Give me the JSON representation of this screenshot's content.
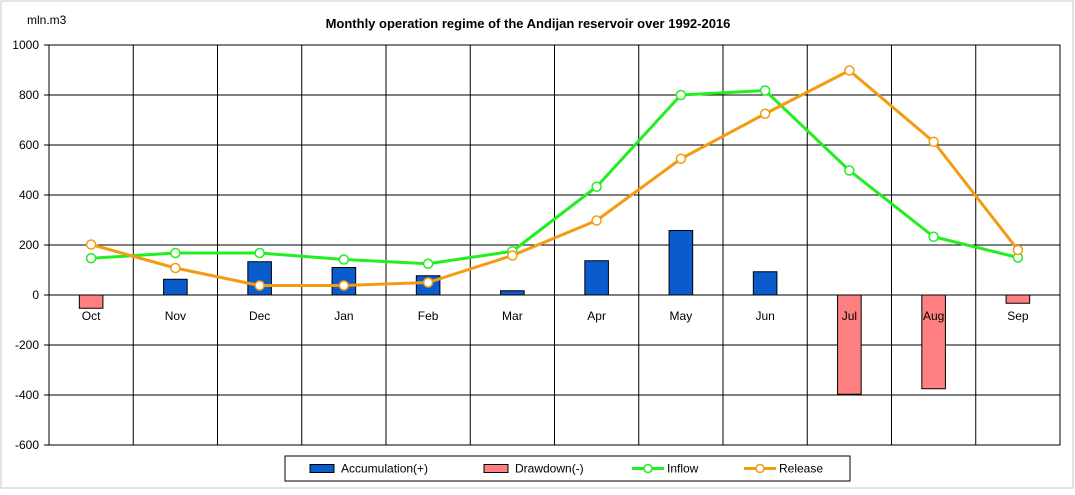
{
  "chart_data": {
    "type": "bar",
    "title": "Monthly operation regime of the Andijan reservoir over 1992-2016",
    "ylabel": "mln.m3",
    "xlabel": "",
    "ylim": [
      -600,
      1000
    ],
    "yticks": [
      1000,
      800,
      600,
      400,
      200,
      0,
      -200,
      -400,
      -600
    ],
    "ytick_labels": [
      "1000",
      "800",
      "600",
      "400",
      "200",
      "0",
      "-200",
      "-400",
      "-600"
    ],
    "grid": true,
    "legend_position": "bottom",
    "categories": [
      "Oct",
      "Nov",
      "Dec",
      "Jan",
      "Feb",
      "Mar",
      "Apr",
      "May",
      "Jun",
      "Jul",
      "Aug",
      "Sep"
    ],
    "series": [
      {
        "name": "Accumulation(+)",
        "kind": "bar",
        "color": "#0a5ccc",
        "values": [
          0,
          63,
          133,
          110,
          77,
          17,
          137,
          258,
          93,
          0,
          0,
          0
        ]
      },
      {
        "name": "Drawdown(-)",
        "kind": "bar",
        "color": "#ff8080",
        "values": [
          -53,
          0,
          0,
          0,
          0,
          0,
          0,
          0,
          0,
          -397,
          -375,
          -33
        ]
      },
      {
        "name": "Inflow",
        "kind": "line",
        "color": "#22ee22",
        "values": [
          147,
          168,
          168,
          142,
          125,
          175,
          433,
          800,
          818,
          498,
          233,
          150
        ]
      },
      {
        "name": "Release",
        "kind": "line",
        "color": "#f39c12",
        "values": [
          202,
          108,
          38,
          38,
          50,
          158,
          298,
          545,
          725,
          898,
          613,
          180
        ]
      }
    ]
  }
}
